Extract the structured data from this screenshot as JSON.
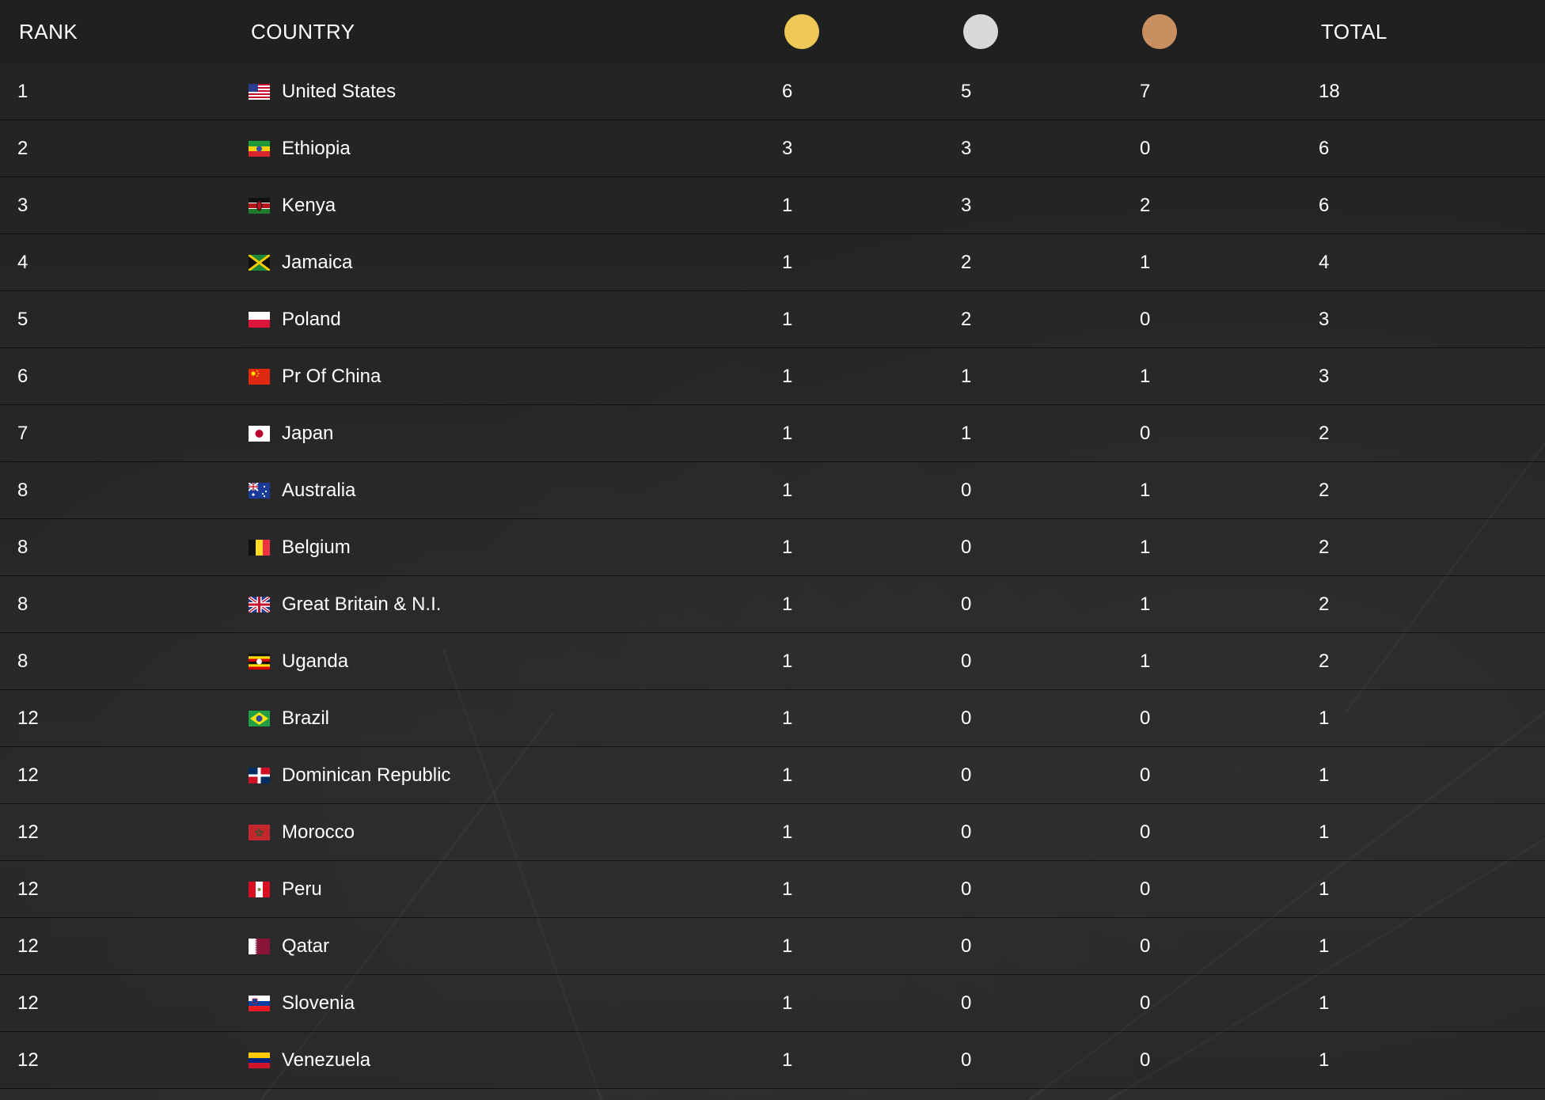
{
  "header": {
    "rank": "RANK",
    "country": "COUNTRY",
    "gold_icon": "gold-medal-icon",
    "silver_icon": "silver-medal-icon",
    "bronze_icon": "bronze-medal-icon",
    "total": "TOTAL"
  },
  "colors": {
    "gold": "#f0c858",
    "silver": "#d8d8d8",
    "bronze": "#c89060",
    "background": "#262626"
  },
  "rows": [
    {
      "rank": "1",
      "country": "United States",
      "flag": "us",
      "gold": "6",
      "silver": "5",
      "bronze": "7",
      "total": "18"
    },
    {
      "rank": "2",
      "country": "Ethiopia",
      "flag": "et",
      "gold": "3",
      "silver": "3",
      "bronze": "0",
      "total": "6"
    },
    {
      "rank": "3",
      "country": "Kenya",
      "flag": "ke",
      "gold": "1",
      "silver": "3",
      "bronze": "2",
      "total": "6"
    },
    {
      "rank": "4",
      "country": "Jamaica",
      "flag": "jm",
      "gold": "1",
      "silver": "2",
      "bronze": "1",
      "total": "4"
    },
    {
      "rank": "5",
      "country": "Poland",
      "flag": "pl",
      "gold": "1",
      "silver": "2",
      "bronze": "0",
      "total": "3"
    },
    {
      "rank": "6",
      "country": "Pr Of China",
      "flag": "cn",
      "gold": "1",
      "silver": "1",
      "bronze": "1",
      "total": "3"
    },
    {
      "rank": "7",
      "country": "Japan",
      "flag": "jp",
      "gold": "1",
      "silver": "1",
      "bronze": "0",
      "total": "2"
    },
    {
      "rank": "8",
      "country": "Australia",
      "flag": "au",
      "gold": "1",
      "silver": "0",
      "bronze": "1",
      "total": "2"
    },
    {
      "rank": "8",
      "country": "Belgium",
      "flag": "be",
      "gold": "1",
      "silver": "0",
      "bronze": "1",
      "total": "2"
    },
    {
      "rank": "8",
      "country": "Great Britain & N.I.",
      "flag": "gb",
      "gold": "1",
      "silver": "0",
      "bronze": "1",
      "total": "2"
    },
    {
      "rank": "8",
      "country": "Uganda",
      "flag": "ug",
      "gold": "1",
      "silver": "0",
      "bronze": "1",
      "total": "2"
    },
    {
      "rank": "12",
      "country": "Brazil",
      "flag": "br",
      "gold": "1",
      "silver": "0",
      "bronze": "0",
      "total": "1"
    },
    {
      "rank": "12",
      "country": "Dominican Republic",
      "flag": "do",
      "gold": "1",
      "silver": "0",
      "bronze": "0",
      "total": "1"
    },
    {
      "rank": "12",
      "country": "Morocco",
      "flag": "ma",
      "gold": "1",
      "silver": "0",
      "bronze": "0",
      "total": "1"
    },
    {
      "rank": "12",
      "country": "Peru",
      "flag": "pe",
      "gold": "1",
      "silver": "0",
      "bronze": "0",
      "total": "1"
    },
    {
      "rank": "12",
      "country": "Qatar",
      "flag": "qa",
      "gold": "1",
      "silver": "0",
      "bronze": "0",
      "total": "1"
    },
    {
      "rank": "12",
      "country": "Slovenia",
      "flag": "si",
      "gold": "1",
      "silver": "0",
      "bronze": "0",
      "total": "1"
    },
    {
      "rank": "12",
      "country": "Venezuela",
      "flag": "ve",
      "gold": "1",
      "silver": "0",
      "bronze": "0",
      "total": "1"
    }
  ]
}
